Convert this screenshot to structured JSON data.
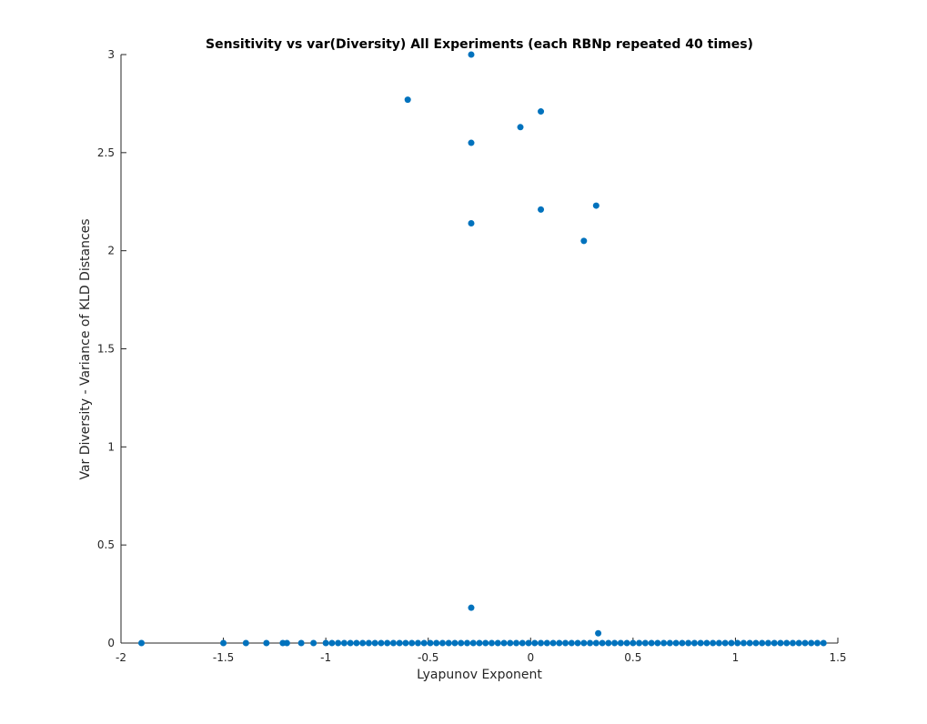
{
  "chart_data": {
    "type": "scatter",
    "title": "Sensitivity vs var(Diversity) All Experiments (each RBNp repeated 40 times)",
    "xlabel": "Lyapunov Exponent",
    "ylabel": "Var Diversity - Variance of KLD Distances",
    "xlim": [
      -2,
      1.5
    ],
    "ylim": [
      0,
      3
    ],
    "xticks": [
      "-2",
      "-1.5",
      "-1",
      "-0.5",
      "0",
      "0.5",
      "1",
      "1.5"
    ],
    "yticks": [
      "0",
      "0.5",
      "1",
      "1.5",
      "2",
      "2.5",
      "3"
    ],
    "grid": false,
    "marker_color": "#0072bd",
    "points": [
      {
        "x": -0.29,
        "y": 3.0
      },
      {
        "x": -0.6,
        "y": 2.77
      },
      {
        "x": 0.05,
        "y": 2.71
      },
      {
        "x": -0.05,
        "y": 2.63
      },
      {
        "x": -0.29,
        "y": 2.55
      },
      {
        "x": 0.32,
        "y": 2.23
      },
      {
        "x": 0.05,
        "y": 2.21
      },
      {
        "x": -0.29,
        "y": 2.14
      },
      {
        "x": 0.26,
        "y": 2.05
      },
      {
        "x": -0.29,
        "y": 0.18
      },
      {
        "x": 0.33,
        "y": 0.05
      },
      {
        "x": -1.9,
        "y": 0
      },
      {
        "x": -1.5,
        "y": 0
      },
      {
        "x": -1.39,
        "y": 0
      },
      {
        "x": -1.29,
        "y": 0
      },
      {
        "x": -1.21,
        "y": 0
      },
      {
        "x": -1.19,
        "y": 0
      },
      {
        "x": -1.12,
        "y": 0
      },
      {
        "x": -1.06,
        "y": 0
      },
      {
        "x": -1.0,
        "y": 0
      },
      {
        "x": -0.97,
        "y": 0
      },
      {
        "x": -0.94,
        "y": 0
      },
      {
        "x": -0.91,
        "y": 0
      },
      {
        "x": -0.88,
        "y": 0
      },
      {
        "x": -0.85,
        "y": 0
      },
      {
        "x": -0.82,
        "y": 0
      },
      {
        "x": -0.79,
        "y": 0
      },
      {
        "x": -0.76,
        "y": 0
      },
      {
        "x": -0.73,
        "y": 0
      },
      {
        "x": -0.7,
        "y": 0
      },
      {
        "x": -0.67,
        "y": 0
      },
      {
        "x": -0.64,
        "y": 0
      },
      {
        "x": -0.61,
        "y": 0
      },
      {
        "x": -0.58,
        "y": 0
      },
      {
        "x": -0.55,
        "y": 0
      },
      {
        "x": -0.52,
        "y": 0
      },
      {
        "x": -0.49,
        "y": 0
      },
      {
        "x": -0.46,
        "y": 0
      },
      {
        "x": -0.43,
        "y": 0
      },
      {
        "x": -0.4,
        "y": 0
      },
      {
        "x": -0.37,
        "y": 0
      },
      {
        "x": -0.34,
        "y": 0
      },
      {
        "x": -0.31,
        "y": 0
      },
      {
        "x": -0.28,
        "y": 0
      },
      {
        "x": -0.25,
        "y": 0
      },
      {
        "x": -0.22,
        "y": 0
      },
      {
        "x": -0.19,
        "y": 0
      },
      {
        "x": -0.16,
        "y": 0
      },
      {
        "x": -0.13,
        "y": 0
      },
      {
        "x": -0.1,
        "y": 0
      },
      {
        "x": -0.07,
        "y": 0
      },
      {
        "x": -0.04,
        "y": 0
      },
      {
        "x": -0.01,
        "y": 0
      },
      {
        "x": 0.02,
        "y": 0
      },
      {
        "x": 0.05,
        "y": 0
      },
      {
        "x": 0.08,
        "y": 0
      },
      {
        "x": 0.11,
        "y": 0
      },
      {
        "x": 0.14,
        "y": 0
      },
      {
        "x": 0.17,
        "y": 0
      },
      {
        "x": 0.2,
        "y": 0
      },
      {
        "x": 0.23,
        "y": 0
      },
      {
        "x": 0.26,
        "y": 0
      },
      {
        "x": 0.29,
        "y": 0
      },
      {
        "x": 0.32,
        "y": 0
      },
      {
        "x": 0.35,
        "y": 0
      },
      {
        "x": 0.38,
        "y": 0
      },
      {
        "x": 0.41,
        "y": 0
      },
      {
        "x": 0.44,
        "y": 0
      },
      {
        "x": 0.47,
        "y": 0
      },
      {
        "x": 0.5,
        "y": 0
      },
      {
        "x": 0.53,
        "y": 0
      },
      {
        "x": 0.56,
        "y": 0
      },
      {
        "x": 0.59,
        "y": 0
      },
      {
        "x": 0.62,
        "y": 0
      },
      {
        "x": 0.65,
        "y": 0
      },
      {
        "x": 0.68,
        "y": 0
      },
      {
        "x": 0.71,
        "y": 0
      },
      {
        "x": 0.74,
        "y": 0
      },
      {
        "x": 0.77,
        "y": 0
      },
      {
        "x": 0.8,
        "y": 0
      },
      {
        "x": 0.83,
        "y": 0
      },
      {
        "x": 0.86,
        "y": 0
      },
      {
        "x": 0.89,
        "y": 0
      },
      {
        "x": 0.92,
        "y": 0
      },
      {
        "x": 0.95,
        "y": 0
      },
      {
        "x": 0.98,
        "y": 0
      },
      {
        "x": 1.01,
        "y": 0
      },
      {
        "x": 1.04,
        "y": 0
      },
      {
        "x": 1.07,
        "y": 0
      },
      {
        "x": 1.1,
        "y": 0
      },
      {
        "x": 1.13,
        "y": 0
      },
      {
        "x": 1.16,
        "y": 0
      },
      {
        "x": 1.19,
        "y": 0
      },
      {
        "x": 1.22,
        "y": 0
      },
      {
        "x": 1.25,
        "y": 0
      },
      {
        "x": 1.28,
        "y": 0
      },
      {
        "x": 1.31,
        "y": 0
      },
      {
        "x": 1.34,
        "y": 0
      },
      {
        "x": 1.37,
        "y": 0
      },
      {
        "x": 1.4,
        "y": 0
      },
      {
        "x": 1.43,
        "y": 0
      }
    ]
  }
}
